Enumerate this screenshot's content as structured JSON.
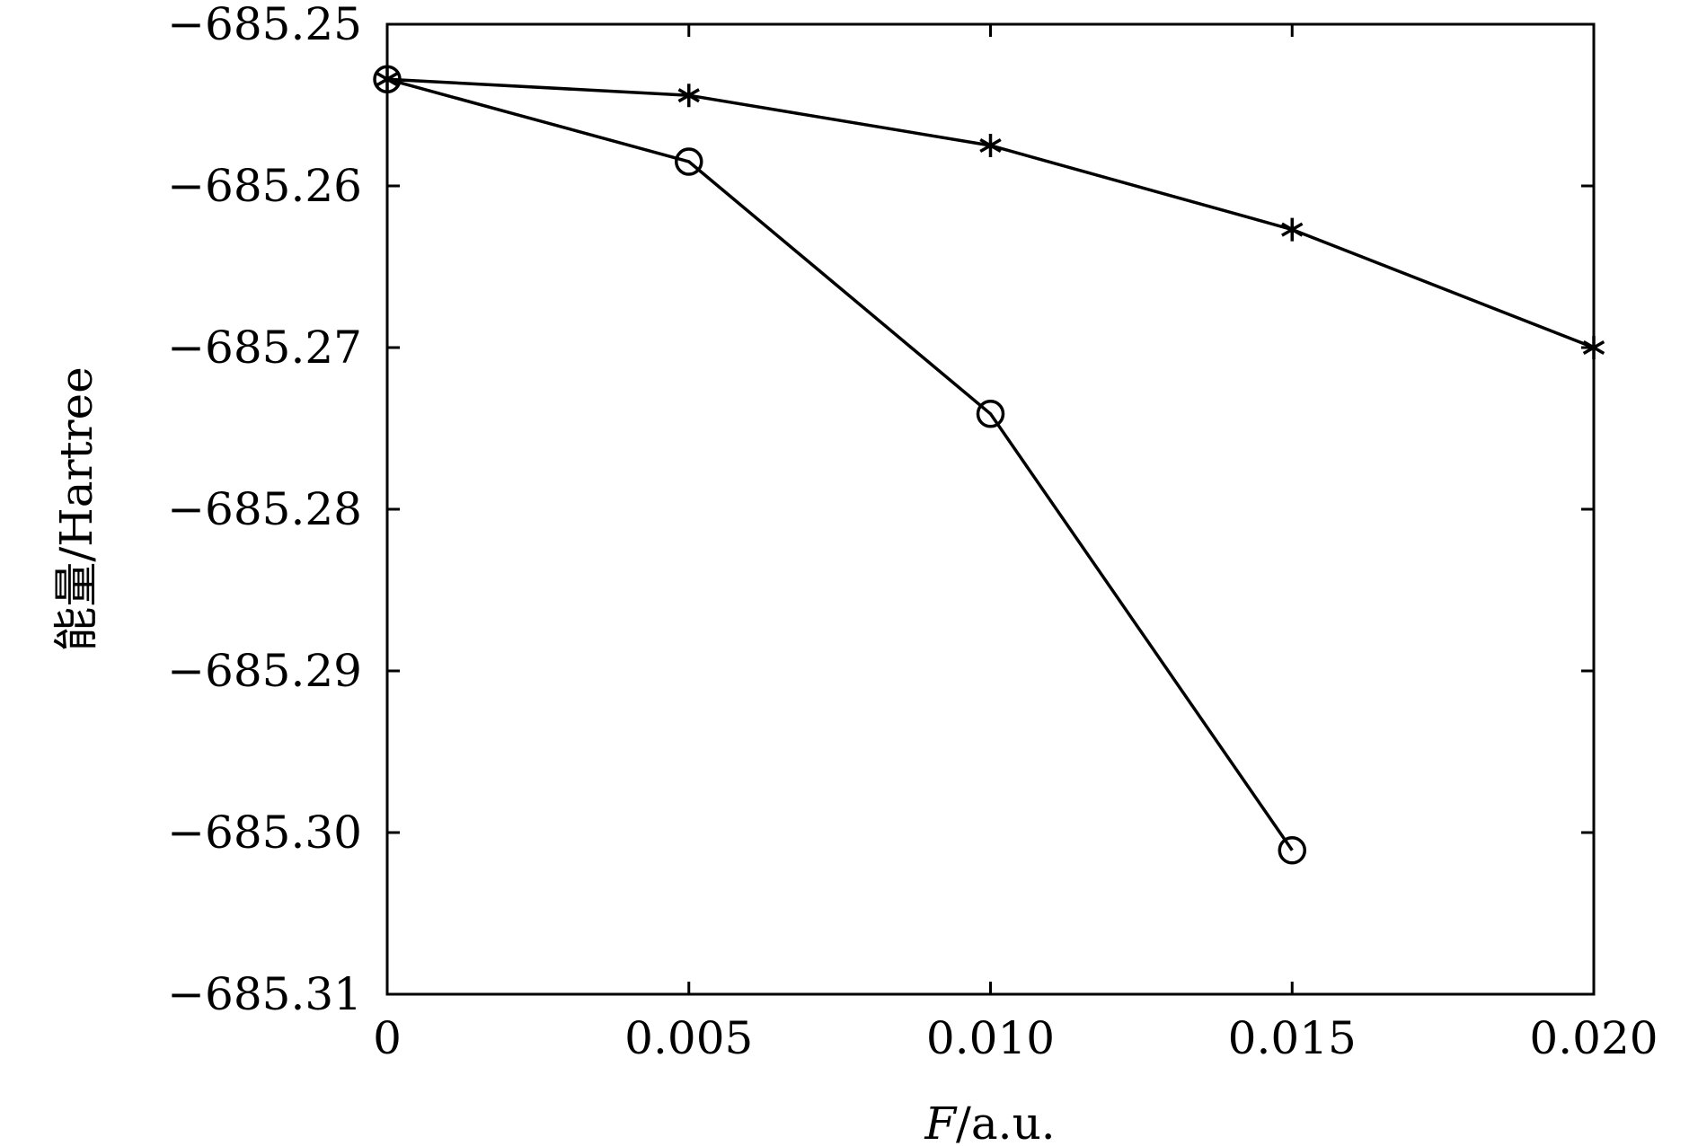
{
  "chart_data": {
    "type": "line",
    "xlabel_italic": "F",
    "xlabel_rest": "/a.u.",
    "ylabel": "能量/Hartree",
    "xlim": [
      0,
      0.02
    ],
    "ylim": [
      -685.31,
      -685.25
    ],
    "x_ticks": [
      0,
      0.005,
      0.01,
      0.015,
      0.02
    ],
    "x_tick_labels": [
      "0",
      "0.005",
      "0.010",
      "0.015",
      "0.020"
    ],
    "y_ticks": [
      -685.25,
      -685.26,
      -685.27,
      -685.28,
      -685.29,
      -685.3,
      -685.31
    ],
    "y_tick_labels": [
      "−685.25",
      "−685.26",
      "−685.27",
      "−685.28",
      "−685.29",
      "−685.30",
      "−685.31"
    ],
    "grid": false,
    "series": [
      {
        "marker": "star",
        "x": [
          0,
          0.005,
          0.01,
          0.015,
          0.02
        ],
        "y": [
          -685.2534,
          -685.2544,
          -685.2575,
          -685.2627,
          -685.27
        ]
      },
      {
        "marker": "circle",
        "x": [
          0,
          0.005,
          0.01,
          0.015
        ],
        "y": [
          -685.2534,
          -685.2585,
          -685.2741,
          -685.3011
        ]
      }
    ]
  }
}
